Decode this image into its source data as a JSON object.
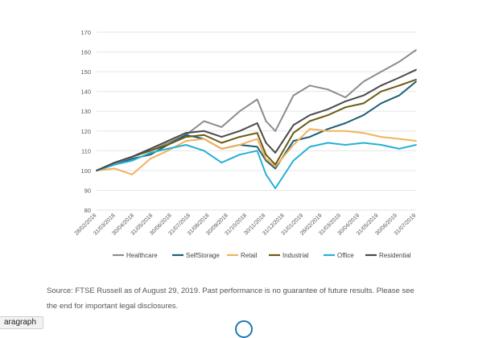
{
  "chart_data": {
    "type": "line",
    "title": "",
    "xlabel": "",
    "ylabel": "",
    "ylim": [
      80,
      170
    ],
    "yticks": [
      80,
      90,
      100,
      110,
      120,
      130,
      140,
      150,
      160,
      170
    ],
    "grid": true,
    "legend_position": "bottom",
    "x_tick_labels": [
      "28/02/2018",
      "31/03/2018",
      "30/04/2018",
      "31/05/2018",
      "30/06/2018",
      "31/07/2018",
      "31/08/2018",
      "30/09/2018",
      "31/10/2018",
      "30/11/2018",
      "31/12/2018",
      "31/01/2019",
      "28/02/2019",
      "31/03/2019",
      "30/04/2019",
      "31/05/2019",
      "30/06/2019",
      "31/07/2019"
    ],
    "x": [
      "2018-02-28",
      "2018-03-31",
      "2018-04-30",
      "2018-05-31",
      "2018-06-30",
      "2018-07-31",
      "2018-08-31",
      "2018-09-30",
      "2018-10-31",
      "2018-11-30",
      "2018-12-15",
      "2018-12-31",
      "2019-01-31",
      "2019-02-28",
      "2019-03-31",
      "2019-04-30",
      "2019-05-31",
      "2019-06-30",
      "2019-07-31",
      "2019-08-29"
    ],
    "series": [
      {
        "name": "Healthcare",
        "color": "#8c8c8c",
        "values": [
          100,
          104,
          107,
          110,
          114,
          118,
          125,
          122,
          130,
          136,
          125,
          120,
          138,
          143,
          141,
          137,
          145,
          150,
          155,
          161
        ]
      },
      {
        "name": "SelfStorage",
        "color": "#1d5f7a",
        "values": [
          100,
          103,
          106,
          108,
          113,
          118,
          116,
          111,
          113,
          112,
          105,
          101,
          115,
          117,
          121,
          124,
          128,
          134,
          138,
          145
        ]
      },
      {
        "name": "Retail",
        "color": "#f2b25c",
        "values": [
          100,
          101,
          98,
          106,
          110,
          115,
          116,
          111,
          113,
          116,
          106,
          102,
          113,
          121,
          120,
          120,
          119,
          117,
          116,
          115
        ]
      },
      {
        "name": "Industrial",
        "color": "#6b5a12",
        "values": [
          100,
          104,
          107,
          110,
          113,
          117,
          118,
          114,
          117,
          119,
          108,
          103,
          119,
          125,
          128,
          132,
          134,
          140,
          143,
          146
        ]
      },
      {
        "name": "Office",
        "color": "#26b0d8",
        "values": [
          100,
          103,
          105,
          109,
          111,
          113,
          110,
          104,
          108,
          110,
          98,
          91,
          105,
          112,
          114,
          113,
          114,
          113,
          111,
          113
        ]
      },
      {
        "name": "Residential",
        "color": "#4a4a4a",
        "values": [
          100,
          104,
          107,
          111,
          115,
          119,
          120,
          117,
          120,
          124,
          114,
          109,
          123,
          128,
          131,
          135,
          138,
          143,
          147,
          151
        ]
      }
    ]
  },
  "caption": {
    "line1": "Source: FTSE Russell as of August 29, 2019. Past performance is no guarantee of future results. Please see",
    "line2": "the end for important legal disclosures."
  },
  "fragment_tag": "aragraph"
}
